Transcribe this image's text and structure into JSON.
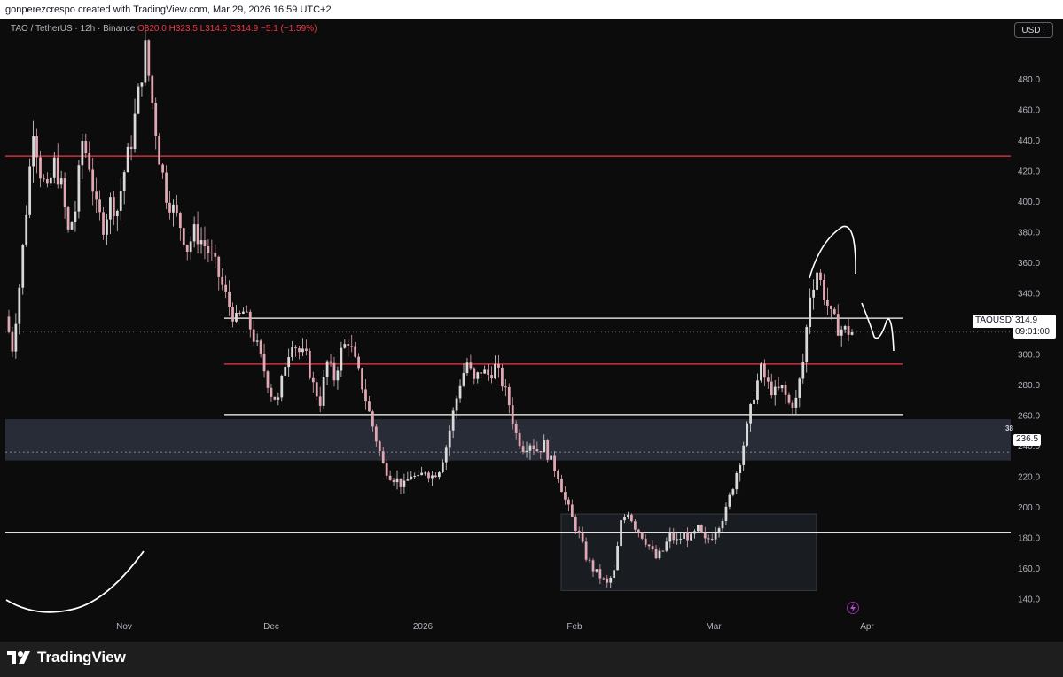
{
  "header": {
    "attribution": "gonperezcrespo created with TradingView.com, Mar 29, 2026 16:59 UTC+2"
  },
  "symbol": {
    "label": "TAO / TetherUS · 12h · Binance",
    "ohlc": "O320.0 H323.5 L314.5 C314.9 −5.1 (−1.59%)"
  },
  "currency_button": "USDT",
  "price_tag": {
    "ticker": "TAOUSDT",
    "price": "314.9",
    "countdown": "09:01:00"
  },
  "level_tag": {
    "price": "236.5",
    "partial_label": "38"
  },
  "footer": {
    "brand": "TradingView"
  },
  "colors": {
    "bull": "#d9d9d9",
    "bear": "#e0a8b3",
    "resistance": "#f23645",
    "level": "#ffffff",
    "zone": "#2a2f3a"
  },
  "icons": {
    "lightning": "lightning-icon",
    "logo": "tradingview-logo-icon"
  },
  "chart_data": {
    "type": "candlestick",
    "symbol": "TAO / TetherUS",
    "interval": "12h",
    "exchange": "Binance",
    "ylim": [
      130,
      510
    ],
    "y_ticks": [
      "480.0",
      "460.0",
      "440.0",
      "420.0",
      "400.0",
      "380.0",
      "360.0",
      "340.0",
      "320.0",
      "300.0",
      "280.0",
      "260.0",
      "240.0",
      "220.0",
      "200.0",
      "180.0",
      "160.0",
      "140.0"
    ],
    "x_ticks": [
      "Nov",
      "Dec",
      "2026",
      "Feb",
      "Mar",
      "Apr"
    ],
    "close_path": [
      {
        "x": "Oct 13",
        "y": 325
      },
      {
        "x": "Oct 14",
        "y": 305
      },
      {
        "x": "Oct 15",
        "y": 345
      },
      {
        "x": "Oct 16",
        "y": 395
      },
      {
        "x": "Oct 17",
        "y": 450
      },
      {
        "x": "Oct 18",
        "y": 420
      },
      {
        "x": "Oct 19",
        "y": 405
      },
      {
        "x": "Oct 20",
        "y": 425
      },
      {
        "x": "Oct 21",
        "y": 410
      },
      {
        "x": "Oct 22",
        "y": 380
      },
      {
        "x": "Oct 23",
        "y": 395
      },
      {
        "x": "Oct 24",
        "y": 440
      },
      {
        "x": "Oct 25",
        "y": 425
      },
      {
        "x": "Oct 26",
        "y": 395
      },
      {
        "x": "Oct 27",
        "y": 385
      },
      {
        "x": "Oct 28",
        "y": 400
      },
      {
        "x": "Oct 29",
        "y": 395
      },
      {
        "x": "Oct 30",
        "y": 420
      },
      {
        "x": "Oct 31",
        "y": 440
      },
      {
        "x": "Nov 1",
        "y": 470
      },
      {
        "x": "Nov 2",
        "y": 500
      },
      {
        "x": "Nov 3",
        "y": 465
      },
      {
        "x": "Nov 4",
        "y": 430
      },
      {
        "x": "Nov 5",
        "y": 405
      },
      {
        "x": "Nov 6",
        "y": 395
      },
      {
        "x": "Nov 7",
        "y": 385
      },
      {
        "x": "Nov 8",
        "y": 370
      },
      {
        "x": "Nov 9",
        "y": 380
      },
      {
        "x": "Nov 10",
        "y": 375
      },
      {
        "x": "Nov 11",
        "y": 368
      },
      {
        "x": "Nov 12",
        "y": 358
      },
      {
        "x": "Nov 13",
        "y": 345
      },
      {
        "x": "Nov 14",
        "y": 332
      },
      {
        "x": "Nov 15",
        "y": 322
      },
      {
        "x": "Nov 16",
        "y": 328
      },
      {
        "x": "Nov 17",
        "y": 318
      },
      {
        "x": "Nov 18",
        "y": 305
      },
      {
        "x": "Nov 19",
        "y": 290
      },
      {
        "x": "Nov 20",
        "y": 275
      },
      {
        "x": "Nov 21",
        "y": 270
      },
      {
        "x": "Nov 22",
        "y": 295
      },
      {
        "x": "Nov 23",
        "y": 310
      },
      {
        "x": "Nov 24",
        "y": 302
      },
      {
        "x": "Nov 25",
        "y": 298
      },
      {
        "x": "Nov 26",
        "y": 280
      },
      {
        "x": "Nov 27",
        "y": 270
      },
      {
        "x": "Nov 28",
        "y": 295
      },
      {
        "x": "Nov 29",
        "y": 285
      },
      {
        "x": "Nov 30",
        "y": 302
      },
      {
        "x": "Dec 1",
        "y": 310
      },
      {
        "x": "Dec 2",
        "y": 295
      },
      {
        "x": "Dec 3",
        "y": 280
      },
      {
        "x": "Dec 4",
        "y": 262
      },
      {
        "x": "Dec 5",
        "y": 245
      },
      {
        "x": "Dec 6",
        "y": 228
      },
      {
        "x": "Dec 7",
        "y": 222
      },
      {
        "x": "Dec 8",
        "y": 218
      },
      {
        "x": "Dec 9",
        "y": 214
      },
      {
        "x": "Dec 10",
        "y": 222
      },
      {
        "x": "Dec 11",
        "y": 218
      },
      {
        "x": "Dec 12",
        "y": 225
      },
      {
        "x": "Dec 13",
        "y": 221
      },
      {
        "x": "Dec 14",
        "y": 226
      },
      {
        "x": "Dec 15",
        "y": 240
      },
      {
        "x": "Dec 16",
        "y": 262
      },
      {
        "x": "Dec 17",
        "y": 282
      },
      {
        "x": "Dec 18",
        "y": 295
      },
      {
        "x": "Dec 19",
        "y": 282
      },
      {
        "x": "Dec 20",
        "y": 290
      },
      {
        "x": "Dec 21",
        "y": 287
      },
      {
        "x": "Dec 22",
        "y": 292
      },
      {
        "x": "Dec 23",
        "y": 282
      },
      {
        "x": "Dec 24",
        "y": 268
      },
      {
        "x": "Dec 25",
        "y": 248
      },
      {
        "x": "Dec 26",
        "y": 240
      },
      {
        "x": "Dec 27",
        "y": 243
      },
      {
        "x": "Dec 28",
        "y": 238
      },
      {
        "x": "Dec 29",
        "y": 241
      },
      {
        "x": "Dec 30",
        "y": 230
      },
      {
        "x": "Dec 31",
        "y": 222
      },
      {
        "x": "Jan 1",
        "y": 205
      },
      {
        "x": "Jan 2",
        "y": 193
      },
      {
        "x": "Jan 3",
        "y": 182
      },
      {
        "x": "Jan 4",
        "y": 168
      },
      {
        "x": "Jan 5",
        "y": 160
      },
      {
        "x": "Jan 6",
        "y": 155
      },
      {
        "x": "Jan 7",
        "y": 150
      },
      {
        "x": "Jan 8",
        "y": 158
      },
      {
        "x": "Jan 9",
        "y": 190
      },
      {
        "x": "Jan 10",
        "y": 198
      },
      {
        "x": "Jan 11",
        "y": 188
      },
      {
        "x": "Jan 12",
        "y": 182
      },
      {
        "x": "Jan 13",
        "y": 175
      },
      {
        "x": "Jan 14",
        "y": 167
      },
      {
        "x": "Jan 15",
        "y": 172
      },
      {
        "x": "Jan 16",
        "y": 182
      },
      {
        "x": "Jan 17",
        "y": 178
      },
      {
        "x": "Jan 18",
        "y": 183
      },
      {
        "x": "Jan 19",
        "y": 180
      },
      {
        "x": "Jan 20",
        "y": 186
      },
      {
        "x": "Jan 21",
        "y": 178
      },
      {
        "x": "Jan 22",
        "y": 182
      },
      {
        "x": "Jan 23",
        "y": 190
      },
      {
        "x": "Jan 24",
        "y": 198
      },
      {
        "x": "Jan 25",
        "y": 215
      },
      {
        "x": "Jan 26",
        "y": 232
      },
      {
        "x": "Jan 27",
        "y": 252
      },
      {
        "x": "Jan 28",
        "y": 275
      },
      {
        "x": "Jan 29",
        "y": 290
      },
      {
        "x": "Jan 30",
        "y": 280
      },
      {
        "x": "Jan 31",
        "y": 275
      },
      {
        "x": "Feb 1",
        "y": 278
      },
      {
        "x": "Feb 2",
        "y": 268
      },
      {
        "x": "Feb 3",
        "y": 270
      },
      {
        "x": "Feb 4",
        "y": 295
      },
      {
        "x": "Feb 5",
        "y": 340
      },
      {
        "x": "Feb 6",
        "y": 355
      },
      {
        "x": "Feb 7",
        "y": 340
      },
      {
        "x": "Feb 8",
        "y": 325
      },
      {
        "x": "Feb 9",
        "y": 318
      },
      {
        "x": "Feb 10",
        "y": 316
      },
      {
        "x": "Feb 11",
        "y": 314.9
      }
    ],
    "horizontal_levels": [
      {
        "price": 430,
        "color": "#f23645",
        "kind": "resistance"
      },
      {
        "price": 324,
        "color": "#ffffff",
        "kind": "range-top"
      },
      {
        "price": 294,
        "color": "#f23645",
        "kind": "resistance"
      },
      {
        "price": 261,
        "color": "#ffffff",
        "kind": "range-bottom"
      },
      {
        "price": 236.5,
        "color": "#a0a4ad",
        "kind": "dotted-marker"
      },
      {
        "price": 184,
        "color": "#ffffff",
        "kind": "support"
      }
    ],
    "zones": [
      {
        "from_price": 231,
        "to_price": 258,
        "scope": "full-width"
      },
      {
        "from_price": 146,
        "to_price": 196,
        "scope": "Jan-Feb box"
      }
    ],
    "last_price": 314.9
  }
}
